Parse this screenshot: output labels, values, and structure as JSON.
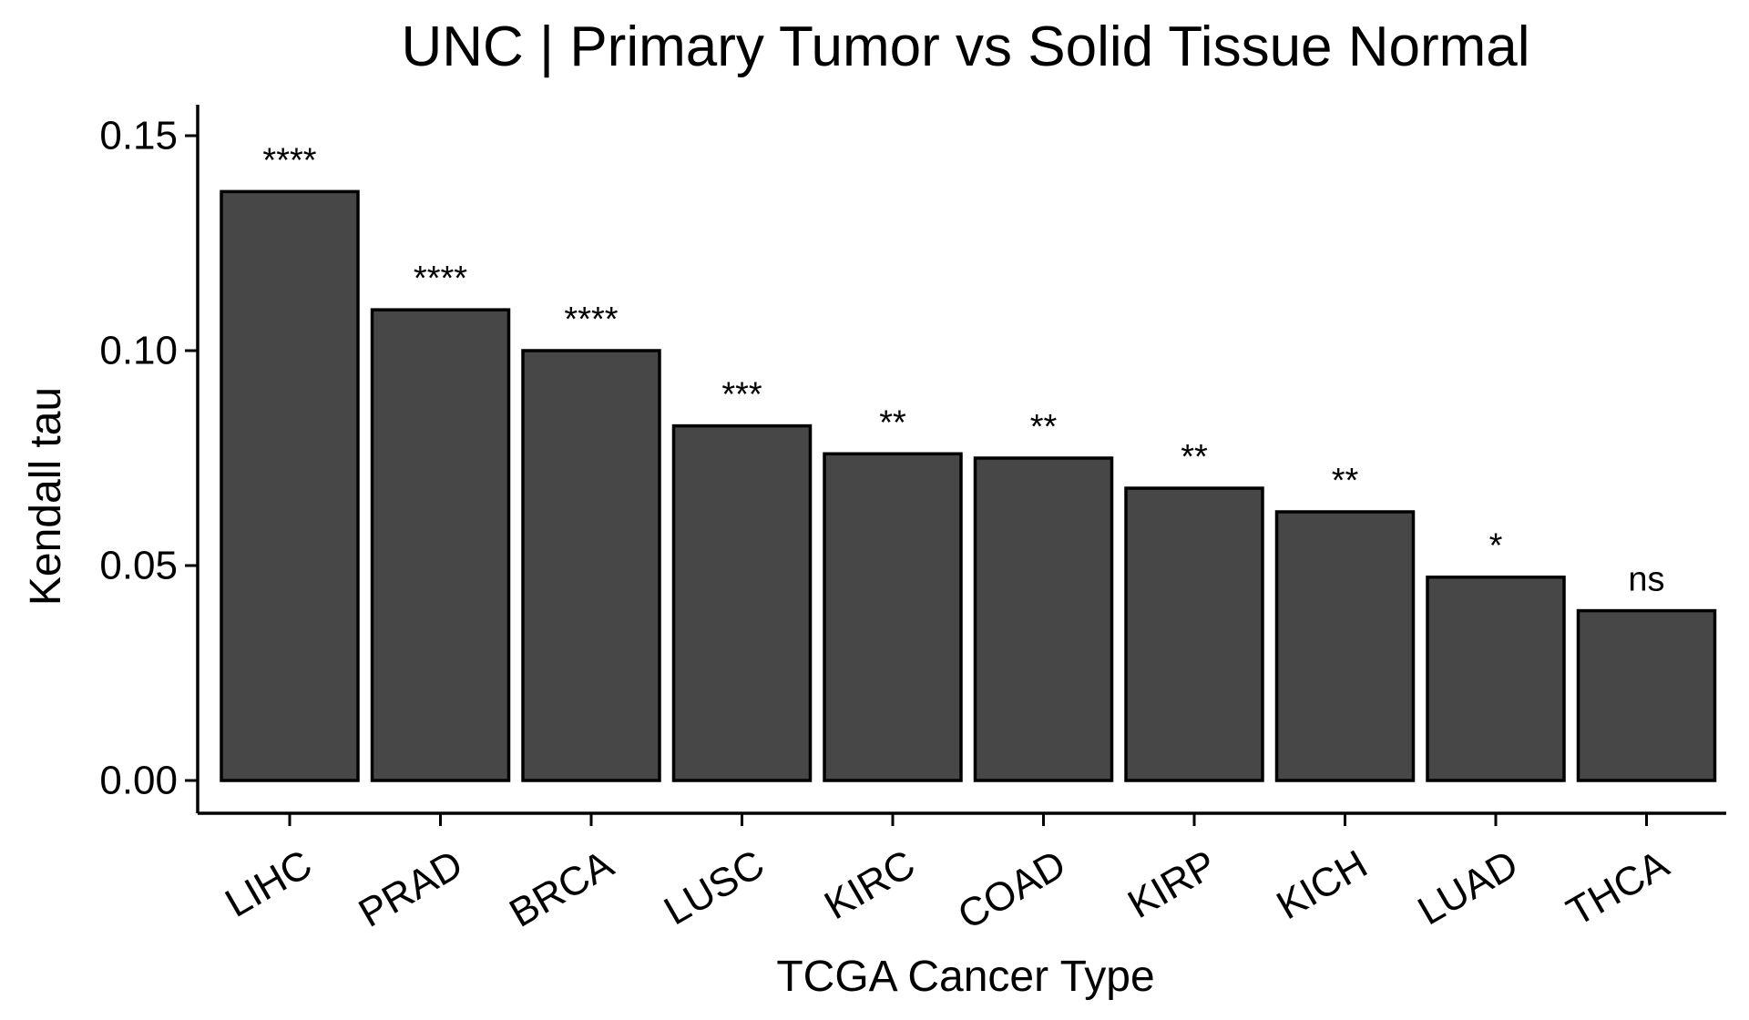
{
  "chart_data": {
    "type": "bar",
    "title": "UNC | Primary Tumor vs Solid Tissue Normal",
    "xlabel": "TCGA Cancer Type",
    "ylabel": "Kendall tau",
    "categories": [
      "LIHC",
      "PRAD",
      "BRCA",
      "LUSC",
      "KIRC",
      "COAD",
      "KIRP",
      "KICH",
      "LUAD",
      "THCA"
    ],
    "values": [
      0.137,
      0.1095,
      0.1,
      0.0825,
      0.076,
      0.075,
      0.068,
      0.0625,
      0.0473,
      0.0395
    ],
    "significance": [
      "****",
      "****",
      "****",
      "***",
      "**",
      "**",
      "**",
      "**",
      "*",
      "ns"
    ],
    "ylim": [
      0,
      0.15
    ],
    "yticks": [
      "0.00",
      "0.05",
      "0.10",
      "0.15"
    ],
    "grid": false,
    "legend": "none",
    "colors": {
      "bar_fill": "#474747",
      "bar_stroke": "#000000",
      "axis": "#000000"
    }
  }
}
